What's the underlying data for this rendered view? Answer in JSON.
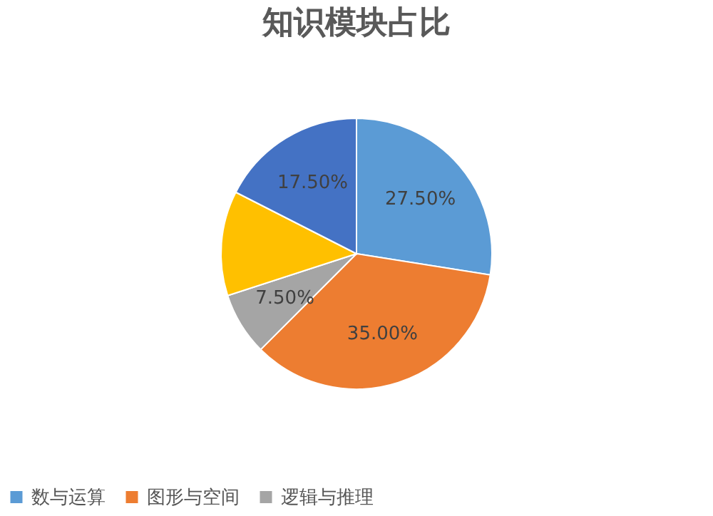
{
  "chart_data": {
    "type": "pie",
    "title": "知识模块占比",
    "categories": [
      "数与运算",
      "图形与空间",
      "逻辑与推理",
      null,
      null
    ],
    "values": [
      27.5,
      35,
      7.5,
      12.5,
      17.5
    ],
    "colors": [
      "#5b9bd5",
      "#ed7d31",
      "#a5a5a5",
      "#ffc000",
      "#4472c4"
    ],
    "value_labels": [
      "27.50%",
      "35.00%",
      "7.50%",
      null,
      "17.50%"
    ],
    "legend": "bottom"
  }
}
